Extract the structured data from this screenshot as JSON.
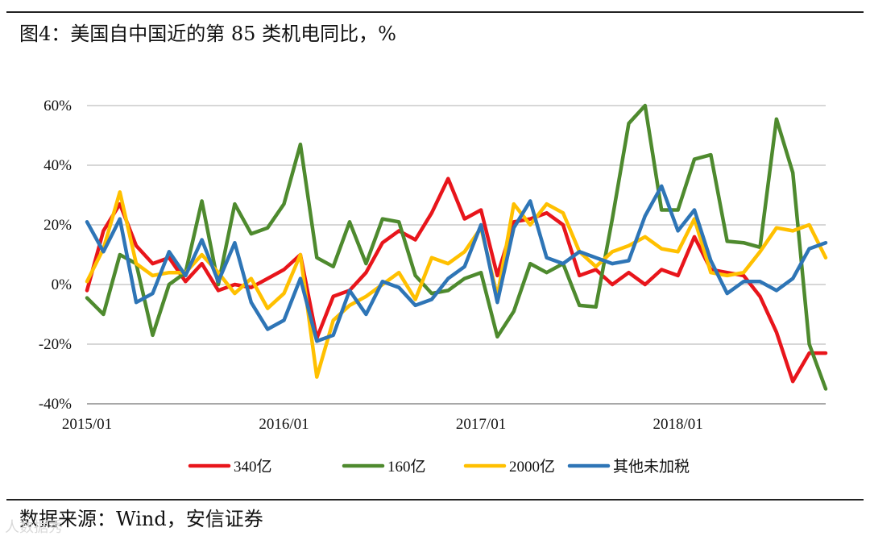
{
  "header": {
    "title": "图4：美国自中国近的第 85 类机电同比，%"
  },
  "footer": {
    "source": "数据来源：Wind，安信证券",
    "watermark": "人数据秀"
  },
  "chart_data": {
    "type": "line",
    "title": "图4：美国自中国近的第 85 类机电同比，%",
    "xlabel": "",
    "ylabel": "",
    "ylim": [
      -40,
      60
    ],
    "yticks": [
      -40,
      -20,
      0,
      20,
      40,
      60
    ],
    "ytick_labels": [
      "-40%",
      "-20%",
      "0%",
      "20%",
      "40%",
      "60%"
    ],
    "xtick_labels": [
      "2015/01",
      "2016/01",
      "2017/01",
      "2018/01"
    ],
    "xtick_index": [
      0,
      12,
      24,
      36
    ],
    "grid": true,
    "legend_position": "bottom",
    "n_points": 46,
    "series": [
      {
        "name": "340亿",
        "color": "#e8151b",
        "values": [
          -2,
          18,
          27,
          13,
          7,
          9,
          1,
          7,
          -2,
          0,
          -1,
          2,
          5,
          10,
          -18,
          -4,
          -2,
          4,
          14,
          18,
          15,
          24,
          35.5,
          22,
          25,
          3,
          21,
          22,
          24,
          20,
          3,
          5,
          0,
          4,
          0,
          5,
          3,
          16,
          5,
          4,
          3,
          -4,
          -16,
          -32.5,
          -23,
          -23
        ]
      },
      {
        "name": "160亿",
        "color": "#4e8a2e",
        "values": [
          -4.5,
          -10,
          10,
          7,
          -17,
          0,
          4,
          28,
          0,
          27,
          17,
          19,
          27,
          47,
          9,
          6,
          21,
          7,
          22,
          21,
          3,
          -3,
          -2,
          2,
          4,
          -17.5,
          -9,
          7,
          4,
          7,
          -7,
          -7.5,
          22,
          54,
          60,
          25,
          25,
          42,
          43.5,
          14.5,
          14,
          12.5,
          55.5,
          37.5,
          -20,
          -35
        ]
      },
      {
        "name": "2000亿",
        "color": "#ffc000",
        "values": [
          1,
          12,
          31,
          7,
          3,
          4,
          4,
          10,
          4,
          -3,
          2,
          -8,
          -3,
          10,
          -31,
          -12,
          -7,
          -4,
          0,
          4,
          -5,
          9,
          7,
          11,
          19,
          -4,
          27,
          20,
          27,
          24,
          11,
          6,
          11,
          13,
          16,
          12,
          11,
          22,
          4,
          3,
          4,
          11,
          19,
          18,
          20,
          9
        ]
      },
      {
        "name": "其他未加税",
        "color": "#2e75b6",
        "values": [
          21,
          11,
          22,
          -6,
          -3,
          11,
          3,
          15,
          1,
          14,
          -6,
          -15,
          -12,
          2,
          -19,
          -17,
          -2,
          -10,
          1,
          -1,
          -7,
          -5,
          2,
          6,
          20,
          -6,
          19,
          28,
          9,
          7,
          11,
          9,
          7,
          8,
          23,
          33,
          18,
          25,
          8,
          -3,
          1,
          1,
          -2,
          2,
          12,
          14
        ]
      }
    ]
  }
}
